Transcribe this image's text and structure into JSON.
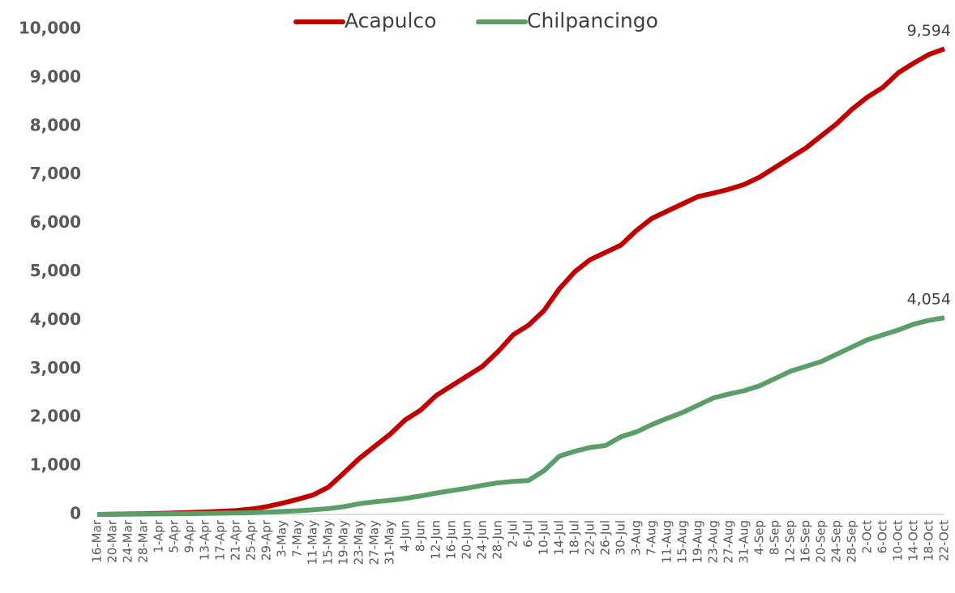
{
  "chart_data": {
    "type": "line",
    "categories": [
      "16-Mar",
      "20-Mar",
      "24-Mar",
      "28-Mar",
      "1-Apr",
      "5-Apr",
      "9-Apr",
      "13-Apr",
      "17-Apr",
      "21-Apr",
      "25-Apr",
      "29-Apr",
      "3-May",
      "7-May",
      "11-May",
      "15-May",
      "19-May",
      "23-May",
      "27-May",
      "31-May",
      "4-Jun",
      "8-Jun",
      "12-Jun",
      "16-Jun",
      "20-Jun",
      "24-Jun",
      "28-Jun",
      "2-Jul",
      "6-Jul",
      "10-Jul",
      "14-Jul",
      "18-Jul",
      "22-Jul",
      "26-Jul",
      "30-Jul",
      "3-Aug",
      "7-Aug",
      "11-Aug",
      "15-Aug",
      "19-Aug",
      "23-Aug",
      "27-Aug",
      "31-Aug",
      "4-Sep",
      "8-Sep",
      "12-Sep",
      "16-Sep",
      "20-Sep",
      "24-Sep",
      "28-Sep",
      "2-Oct",
      "6-Oct",
      "10-Oct",
      "14-Oct",
      "18-Oct",
      "22-Oct"
    ],
    "series": [
      {
        "name": "Acapulco",
        "color": "#c00000",
        "values": [
          0,
          5,
          10,
          15,
          20,
          30,
          40,
          50,
          65,
          80,
          110,
          160,
          230,
          310,
          400,
          560,
          850,
          1150,
          1400,
          1650,
          1950,
          2150,
          2450,
          2650,
          2850,
          3050,
          3350,
          3700,
          3900,
          4200,
          4650,
          5000,
          5250,
          5400,
          5550,
          5850,
          6100,
          6250,
          6400,
          6550,
          6620,
          6700,
          6800,
          6950,
          7150,
          7350,
          7550,
          7800,
          8050,
          8350,
          8600,
          8800,
          9100,
          9300,
          9480,
          9594
        ],
        "value_labels": [
          null,
          null,
          null,
          null,
          null,
          null,
          null,
          null,
          null,
          null,
          null,
          null,
          null,
          null,
          null,
          null,
          null,
          null,
          null,
          null,
          null,
          null,
          null,
          null,
          null,
          null,
          null,
          null,
          null,
          null,
          null,
          null,
          null,
          null,
          null,
          null,
          null,
          null,
          null,
          null,
          null,
          null,
          null,
          null,
          null,
          null,
          null,
          null,
          null,
          null,
          null,
          null,
          null,
          null,
          null,
          "9,594"
        ]
      },
      {
        "name": "Chilpancingo",
        "color": "#5b9e6a",
        "values": [
          0,
          2,
          5,
          8,
          10,
          12,
          15,
          20,
          25,
          30,
          35,
          45,
          60,
          75,
          95,
          120,
          160,
          220,
          260,
          290,
          330,
          380,
          440,
          490,
          540,
          600,
          650,
          680,
          700,
          900,
          1200,
          1300,
          1380,
          1420,
          1600,
          1700,
          1850,
          1980,
          2100,
          2250,
          2400,
          2480,
          2550,
          2650,
          2800,
          2950,
          3050,
          3150,
          3300,
          3450,
          3600,
          3700,
          3800,
          3920,
          4000,
          4054
        ],
        "value_labels": [
          null,
          null,
          null,
          null,
          null,
          null,
          null,
          null,
          null,
          null,
          null,
          null,
          null,
          null,
          null,
          null,
          null,
          null,
          null,
          null,
          null,
          null,
          null,
          null,
          null,
          null,
          null,
          null,
          null,
          null,
          null,
          null,
          null,
          null,
          null,
          null,
          null,
          null,
          null,
          null,
          null,
          null,
          null,
          null,
          null,
          null,
          null,
          null,
          null,
          null,
          null,
          null,
          null,
          null,
          null,
          "4,054"
        ]
      }
    ],
    "ylim": [
      0,
      10000
    ],
    "yticks": [
      0,
      {
        "value": 1000,
        "label": "1,000"
      },
      {
        "value": 2000,
        "label": "2,000"
      },
      {
        "value": 3000,
        "label": "3,000"
      },
      {
        "value": 4000,
        "label": "4,000"
      },
      {
        "value": 5000,
        "label": "5,000"
      },
      {
        "value": 6000,
        "label": "6,000"
      },
      {
        "value": 7000,
        "label": "7,000"
      },
      {
        "value": 8000,
        "label": "8,000"
      },
      {
        "value": 9000,
        "label": "9,000"
      },
      {
        "value": 10000,
        "label": "10,000"
      }
    ],
    "grid": false,
    "legend": "top"
  }
}
